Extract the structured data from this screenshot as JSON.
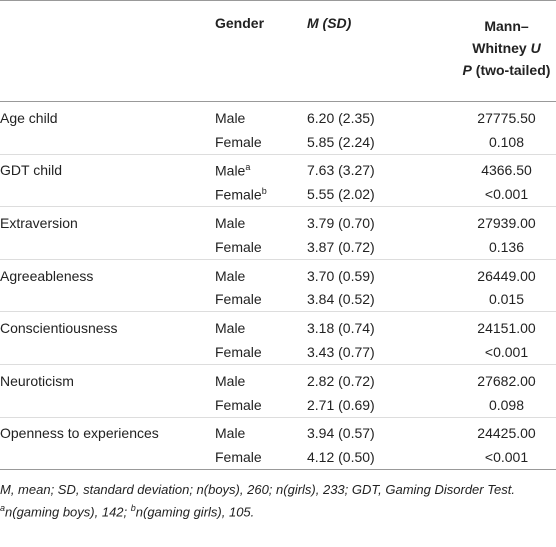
{
  "header": {
    "col1": "",
    "gender": "Gender",
    "msd": "M (SD)",
    "test_name": "Mann–Whitney ",
    "test_symbol": "U",
    "p_symbol": "P",
    "p_text": " (two-tailed)"
  },
  "table": {
    "rows": [
      {
        "variable": "Age child",
        "entries": [
          {
            "gender": "Male",
            "msd": "6.20 (2.35)",
            "value": "27775.50"
          },
          {
            "gender": "Female",
            "msd": "5.85 (2.24)",
            "value": "0.108"
          }
        ]
      },
      {
        "variable": "GDT child",
        "entries": [
          {
            "gender": "Male",
            "sup": "a",
            "msd": "7.63 (3.27)",
            "value": "4366.50"
          },
          {
            "gender": "Female",
            "sup": "b",
            "msd": "5.55 (2.02)",
            "value": "<0.001"
          }
        ]
      },
      {
        "variable": "Extraversion",
        "entries": [
          {
            "gender": "Male",
            "msd": "3.79 (0.70)",
            "value": "27939.00"
          },
          {
            "gender": "Female",
            "msd": "3.87 (0.72)",
            "value": "0.136"
          }
        ]
      },
      {
        "variable": "Agreeableness",
        "entries": [
          {
            "gender": "Male",
            "msd": "3.70 (0.59)",
            "value": "26449.00"
          },
          {
            "gender": "Female",
            "msd": "3.84 (0.52)",
            "value": "0.015"
          }
        ]
      },
      {
        "variable": "Conscientiousness",
        "entries": [
          {
            "gender": "Male",
            "msd": "3.18 (0.74)",
            "value": "24151.00"
          },
          {
            "gender": "Female",
            "msd": "3.43 (0.77)",
            "value": "<0.001"
          }
        ]
      },
      {
        "variable": "Neuroticism",
        "entries": [
          {
            "gender": "Male",
            "msd": "2.82 (0.72)",
            "value": "27682.00"
          },
          {
            "gender": "Female",
            "msd": "2.71 (0.69)",
            "value": "0.098"
          }
        ]
      },
      {
        "variable": "Openness to experiences",
        "entries": [
          {
            "gender": "Male",
            "msd": "3.94 (0.57)",
            "value": "24425.00"
          },
          {
            "gender": "Female",
            "msd": "4.12 (0.50)",
            "value": "<0.001"
          }
        ]
      }
    ]
  },
  "footnote": {
    "line1": "M, mean; SD, standard deviation; n(boys), 260; n(girls), 233; GDT, Gaming Disorder Test.",
    "sup_a": "a",
    "note_a": "n(gaming boys), 142; ",
    "sup_b": "b",
    "note_b": "n(gaming girls), 105."
  }
}
